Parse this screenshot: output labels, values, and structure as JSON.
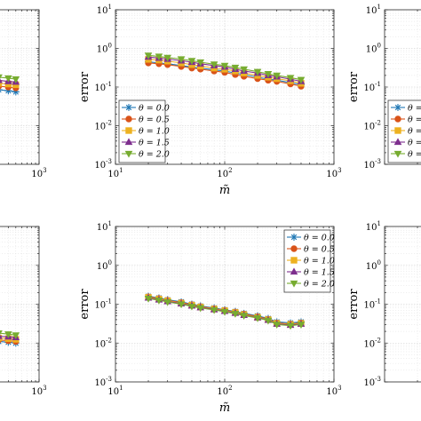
{
  "chart_data": [
    {
      "panel": "top-left",
      "type": "line",
      "xscale": "log",
      "yscale": "log",
      "xlim": [
        10,
        1000
      ],
      "ylim": [
        0.001,
        10
      ],
      "x_ticks": [
        "10^1",
        "10^2",
        "10^3"
      ],
      "y_ticks": [
        "10^-3",
        "10^-2",
        "10^-1",
        "10^0",
        "10^1"
      ],
      "visible_x_tick_labels": [
        "10^3"
      ],
      "xlabel": "",
      "ylabel": "",
      "grid": true,
      "legend": "none",
      "x": [
        20,
        25,
        30,
        40,
        50,
        60,
        80,
        100,
        125,
        150,
        200,
        250,
        300,
        400,
        500
      ],
      "series": [
        {
          "name": "θ = 0.0",
          "values": [
            0.2,
            0.18,
            0.17,
            0.15,
            0.14,
            0.13,
            0.12,
            0.11,
            0.105,
            0.1,
            0.095,
            0.09,
            0.085,
            0.08,
            0.075
          ]
        },
        {
          "name": "θ = 0.5",
          "values": [
            0.24,
            0.22,
            0.2,
            0.18,
            0.17,
            0.16,
            0.15,
            0.14,
            0.13,
            0.125,
            0.12,
            0.11,
            0.105,
            0.1,
            0.095
          ]
        },
        {
          "name": "θ = 1.0",
          "values": [
            0.28,
            0.26,
            0.24,
            0.22,
            0.2,
            0.19,
            0.18,
            0.17,
            0.16,
            0.15,
            0.14,
            0.13,
            0.125,
            0.12,
            0.115
          ]
        },
        {
          "name": "θ = 1.5",
          "values": [
            0.32,
            0.3,
            0.28,
            0.26,
            0.24,
            0.22,
            0.21,
            0.2,
            0.19,
            0.18,
            0.17,
            0.16,
            0.15,
            0.14,
            0.135
          ]
        },
        {
          "name": "θ = 2.0",
          "values": [
            0.38,
            0.35,
            0.33,
            0.3,
            0.28,
            0.26,
            0.25,
            0.24,
            0.23,
            0.22,
            0.2,
            0.19,
            0.18,
            0.17,
            0.16
          ]
        }
      ]
    },
    {
      "panel": "top-center",
      "type": "line",
      "xscale": "log",
      "yscale": "log",
      "xlim": [
        10,
        1000
      ],
      "ylim": [
        0.001,
        10
      ],
      "x_ticks": [
        "10^1",
        "10^2",
        "10^3"
      ],
      "y_ticks": [
        "10^-3",
        "10^-2",
        "10^-1",
        "10^0",
        "10^1"
      ],
      "xlabel": "m̃",
      "ylabel": "error",
      "grid": true,
      "legend": "bottom-left",
      "x": [
        20,
        25,
        30,
        40,
        50,
        60,
        80,
        100,
        125,
        150,
        200,
        250,
        300,
        400,
        500
      ],
      "series": [
        {
          "name": "θ = 0.0",
          "values": [
            0.45,
            0.42,
            0.4,
            0.36,
            0.33,
            0.31,
            0.28,
            0.26,
            0.23,
            0.21,
            0.18,
            0.16,
            0.15,
            0.13,
            0.115
          ]
        },
        {
          "name": "θ = 0.5",
          "values": [
            0.42,
            0.4,
            0.38,
            0.34,
            0.31,
            0.29,
            0.26,
            0.24,
            0.21,
            0.19,
            0.165,
            0.15,
            0.14,
            0.12,
            0.105
          ]
        },
        {
          "name": "θ = 1.0",
          "values": [
            0.52,
            0.5,
            0.47,
            0.42,
            0.38,
            0.35,
            0.31,
            0.29,
            0.26,
            0.23,
            0.2,
            0.18,
            0.165,
            0.145,
            0.125
          ]
        },
        {
          "name": "θ = 1.5",
          "values": [
            0.6,
            0.56,
            0.53,
            0.48,
            0.44,
            0.4,
            0.36,
            0.33,
            0.29,
            0.26,
            0.23,
            0.2,
            0.185,
            0.16,
            0.14
          ]
        },
        {
          "name": "θ = 2.0",
          "values": [
            0.66,
            0.62,
            0.58,
            0.53,
            0.48,
            0.44,
            0.39,
            0.36,
            0.32,
            0.29,
            0.25,
            0.22,
            0.2,
            0.175,
            0.155
          ]
        }
      ]
    },
    {
      "panel": "top-right",
      "type": "line",
      "xscale": "log",
      "yscale": "log",
      "xlim": [
        10,
        1000
      ],
      "ylim": [
        0.001,
        10
      ],
      "y_ticks": [
        "10^-3",
        "10^-2",
        "10^-1",
        "10^0",
        "10^1"
      ],
      "visible_y_tick_labels": [
        "10^1",
        "10^0",
        "10^-1",
        "10^-2",
        "10^-3"
      ],
      "xlabel": "",
      "ylabel": "error",
      "grid": true,
      "legend": "bottom-left"
    },
    {
      "panel": "bottom-left",
      "type": "line",
      "xscale": "log",
      "yscale": "log",
      "xlim": [
        10,
        1000
      ],
      "ylim": [
        0.001,
        10
      ],
      "x_ticks": [
        "10^1",
        "10^2",
        "10^3"
      ],
      "visible_x_tick_labels": [
        "10^3"
      ],
      "xlabel": "",
      "ylabel": "",
      "grid": true,
      "legend": "top-left",
      "x": [
        20,
        25,
        30,
        40,
        50,
        60,
        80,
        100,
        125,
        150,
        200,
        250,
        300,
        400,
        500
      ],
      "series": [
        {
          "name": "θ = 0.0",
          "values": [
            0.03,
            0.026,
            0.023,
            0.02,
            0.018,
            0.016,
            0.015,
            0.014,
            0.013,
            0.0125,
            0.012,
            0.0115,
            0.011,
            0.0105,
            0.01
          ]
        },
        {
          "name": "θ = 0.5",
          "values": [
            0.034,
            0.03,
            0.026,
            0.023,
            0.02,
            0.018,
            0.017,
            0.016,
            0.015,
            0.014,
            0.013,
            0.0125,
            0.012,
            0.0115,
            0.011
          ]
        },
        {
          "name": "θ = 1.0",
          "values": [
            0.038,
            0.034,
            0.03,
            0.026,
            0.023,
            0.021,
            0.019,
            0.018,
            0.017,
            0.016,
            0.015,
            0.014,
            0.0135,
            0.013,
            0.0125
          ]
        },
        {
          "name": "θ = 1.5",
          "values": [
            0.044,
            0.039,
            0.034,
            0.03,
            0.027,
            0.024,
            0.022,
            0.02,
            0.019,
            0.018,
            0.017,
            0.016,
            0.015,
            0.0145,
            0.014
          ]
        },
        {
          "name": "θ = 2.0",
          "values": [
            0.05,
            0.045,
            0.04,
            0.035,
            0.031,
            0.028,
            0.025,
            0.023,
            0.022,
            0.021,
            0.02,
            0.019,
            0.018,
            0.017,
            0.016
          ]
        }
      ]
    },
    {
      "panel": "bottom-center",
      "type": "line",
      "xscale": "log",
      "yscale": "log",
      "xlim": [
        10,
        1000
      ],
      "ylim": [
        0.001,
        10
      ],
      "x_ticks": [
        "10^1",
        "10^2",
        "10^3"
      ],
      "y_ticks": [
        "10^-3",
        "10^-2",
        "10^-1",
        "10^0",
        "10^1"
      ],
      "xlabel": "m̃",
      "ylabel": "error",
      "grid": true,
      "legend": "top-right",
      "x": [
        20,
        25,
        30,
        40,
        50,
        60,
        80,
        100,
        125,
        150,
        200,
        250,
        300,
        400,
        500
      ],
      "series": [
        {
          "name": "θ = 0.0",
          "values": [
            0.16,
            0.145,
            0.13,
            0.115,
            0.1,
            0.09,
            0.08,
            0.072,
            0.065,
            0.058,
            0.05,
            0.043,
            0.035,
            0.033,
            0.035
          ]
        },
        {
          "name": "θ = 0.5",
          "values": [
            0.155,
            0.14,
            0.126,
            0.11,
            0.097,
            0.087,
            0.077,
            0.07,
            0.063,
            0.056,
            0.048,
            0.041,
            0.033,
            0.031,
            0.033
          ]
        },
        {
          "name": "θ = 1.0",
          "values": [
            0.15,
            0.135,
            0.122,
            0.106,
            0.094,
            0.084,
            0.075,
            0.068,
            0.061,
            0.054,
            0.046,
            0.04,
            0.032,
            0.03,
            0.032
          ]
        },
        {
          "name": "θ = 1.5",
          "values": [
            0.145,
            0.13,
            0.118,
            0.103,
            0.091,
            0.082,
            0.073,
            0.066,
            0.059,
            0.052,
            0.045,
            0.039,
            0.031,
            0.029,
            0.031
          ]
        },
        {
          "name": "θ = 2.0",
          "values": [
            0.14,
            0.126,
            0.114,
            0.1,
            0.088,
            0.08,
            0.071,
            0.064,
            0.057,
            0.051,
            0.044,
            0.038,
            0.03,
            0.028,
            0.03
          ]
        }
      ]
    },
    {
      "panel": "bottom-right",
      "type": "line",
      "xscale": "log",
      "yscale": "log",
      "xlim": [
        10,
        1000
      ],
      "ylim": [
        0.001,
        10
      ],
      "y_ticks": [
        "10^-3",
        "10^-2",
        "10^-1",
        "10^0",
        "10^1"
      ],
      "visible_y_tick_labels": [
        "10^1",
        "10^0",
        "10^-1",
        "10^-2",
        "10^-3"
      ],
      "xlabel": "",
      "ylabel": "error",
      "grid": true,
      "legend": "none"
    }
  ],
  "series_colors": [
    "#1f77b4",
    "#d95319",
    "#edb120",
    "#7e2f8e",
    "#77ac30"
  ],
  "series_markers": [
    "asterisk",
    "circle",
    "square",
    "triangle-up",
    "triangle-down"
  ],
  "legend_labels": [
    "θ = 0.0",
    "θ = 0.5",
    "θ = 1.0",
    "θ = 1.5",
    "θ = 2.0"
  ]
}
